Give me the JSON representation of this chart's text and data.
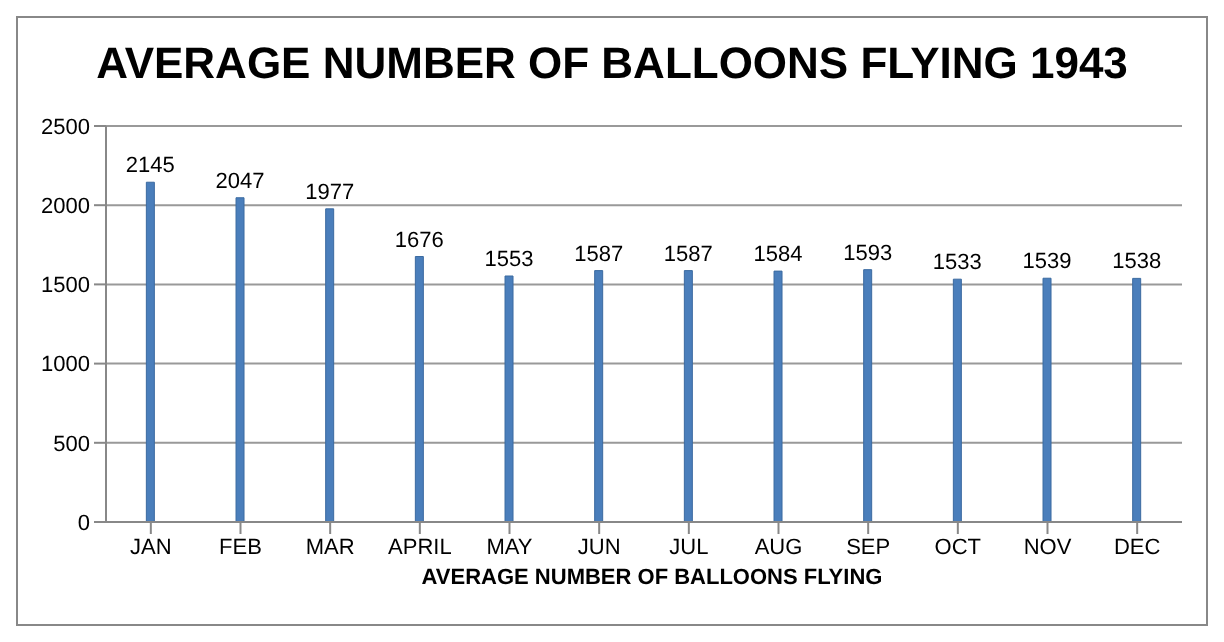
{
  "chart_data": {
    "type": "bar",
    "title": "AVERAGE NUMBER OF BALLOONS FLYING 1943",
    "xlabel": "AVERAGE NUMBER OF BALLOONS FLYING",
    "categories": [
      "JAN",
      "FEB",
      "MAR",
      "APRIL",
      "MAY",
      "JUN",
      "JUL",
      "AUG",
      "SEP",
      "OCT",
      "NOV",
      "DEC"
    ],
    "values": [
      2145,
      2047,
      1977,
      1676,
      1553,
      1587,
      1587,
      1584,
      1593,
      1533,
      1539,
      1538
    ],
    "color": "#4a7ebb",
    "ylim": [
      0,
      2500
    ],
    "yticks": [
      0,
      500,
      1000,
      1500,
      2000,
      2500
    ],
    "grid": "y",
    "data_labels": true
  }
}
